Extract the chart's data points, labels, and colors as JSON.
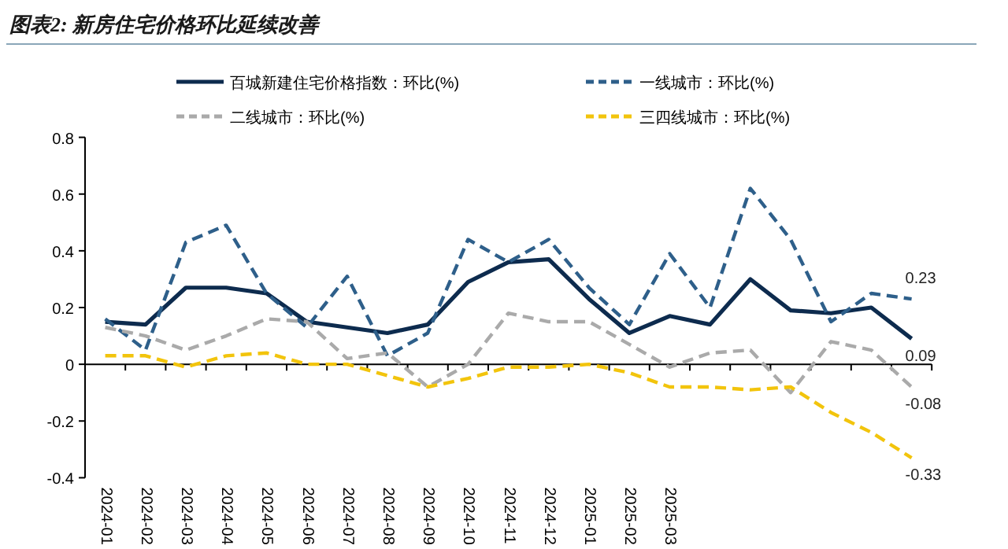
{
  "chart_data": {
    "type": "line",
    "title": "图表2: 新房住宅价格环比延续改善",
    "categories": [
      "2024-01",
      "2024-02",
      "2024-03",
      "2024-04",
      "2024-05",
      "2024-06",
      "2024-07",
      "2024-08",
      "2024-09",
      "2024-10",
      "2024-11",
      "2024-12",
      "2025-01",
      "2025-02",
      "2025-03",
      null,
      null,
      null,
      null,
      null,
      null
    ],
    "series": [
      {
        "name": "百城新建住宅价格指数：环比(%)",
        "color": "#0d2b4e",
        "line_style": "solid",
        "values": [
          0.15,
          0.14,
          0.27,
          0.27,
          0.25,
          0.15,
          0.13,
          0.11,
          0.14,
          0.29,
          0.36,
          0.37,
          0.23,
          0.11,
          0.17,
          0.14,
          0.3,
          0.19,
          0.18,
          0.2,
          0.09
        ],
        "value_labels": [
          null,
          null,
          null,
          null,
          null,
          null,
          null,
          null,
          null,
          null,
          null,
          null,
          null,
          null,
          null,
          null,
          null,
          null,
          null,
          null,
          "0.09"
        ]
      },
      {
        "name": "一线城市：环比(%)",
        "color": "#2e5f8a",
        "line_style": "dashed",
        "values": [
          0.16,
          0.05,
          0.43,
          0.49,
          0.25,
          0.13,
          0.31,
          0.03,
          0.11,
          0.44,
          0.36,
          0.44,
          0.27,
          0.14,
          0.39,
          0.2,
          0.62,
          0.44,
          0.15,
          0.25,
          0.23
        ],
        "value_labels": [
          null,
          null,
          null,
          null,
          null,
          null,
          null,
          null,
          null,
          null,
          null,
          null,
          null,
          null,
          null,
          null,
          null,
          null,
          null,
          null,
          "0.23"
        ]
      },
      {
        "name": "二线城市：环比(%)",
        "color": "#aaaaaa",
        "line_style": "dashed",
        "values": [
          0.13,
          0.1,
          0.05,
          0.1,
          0.16,
          0.15,
          0.02,
          0.04,
          -0.08,
          0.0,
          0.18,
          0.15,
          0.15,
          0.07,
          -0.01,
          0.04,
          0.05,
          -0.1,
          0.08,
          0.05,
          -0.08
        ],
        "value_labels": [
          null,
          null,
          null,
          null,
          null,
          null,
          null,
          null,
          null,
          null,
          null,
          null,
          null,
          null,
          null,
          null,
          null,
          null,
          null,
          null,
          "-0.08"
        ]
      },
      {
        "name": "三四线城市：环比(%)",
        "color": "#f2c40c",
        "line_style": "dashed",
        "values": [
          0.03,
          0.03,
          -0.01,
          0.03,
          0.04,
          0.0,
          0.0,
          -0.04,
          -0.08,
          -0.05,
          -0.01,
          -0.01,
          0.0,
          -0.03,
          -0.08,
          -0.08,
          -0.09,
          -0.08,
          -0.17,
          -0.24,
          -0.33
        ],
        "value_labels": [
          null,
          null,
          null,
          null,
          null,
          null,
          null,
          null,
          null,
          null,
          null,
          null,
          null,
          null,
          null,
          null,
          null,
          null,
          null,
          null,
          "-0.33"
        ]
      }
    ],
    "ylim": [
      -0.4,
      0.8
    ],
    "yticks": [
      -0.4,
      -0.2,
      0,
      0.2,
      0.4,
      0.6,
      0.8
    ],
    "legend": "top",
    "marker": "none"
  }
}
